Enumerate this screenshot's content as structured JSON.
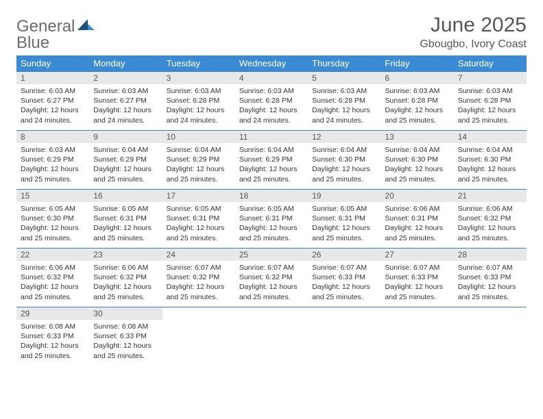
{
  "logo": {
    "textGray": "General",
    "textBlue": "Blue"
  },
  "header": {
    "title": "June 2025",
    "location": "Gbougbo, Ivory Coast"
  },
  "colors": {
    "headerBar": "#3b8bd4",
    "rowBorder": "#3b7fc4",
    "dayNumBg": "#e8e8e8",
    "logoBlue": "#3b7fc4",
    "logoNavy": "#1f4e79"
  },
  "weekdays": [
    "Sunday",
    "Monday",
    "Tuesday",
    "Wednesday",
    "Thursday",
    "Friday",
    "Saturday"
  ],
  "startOffset": 0,
  "days": [
    {
      "n": 1,
      "sr": "6:03 AM",
      "ss": "6:27 PM",
      "dl": "12 hours and 24 minutes."
    },
    {
      "n": 2,
      "sr": "6:03 AM",
      "ss": "6:27 PM",
      "dl": "12 hours and 24 minutes."
    },
    {
      "n": 3,
      "sr": "6:03 AM",
      "ss": "6:28 PM",
      "dl": "12 hours and 24 minutes."
    },
    {
      "n": 4,
      "sr": "6:03 AM",
      "ss": "6:28 PM",
      "dl": "12 hours and 24 minutes."
    },
    {
      "n": 5,
      "sr": "6:03 AM",
      "ss": "6:28 PM",
      "dl": "12 hours and 24 minutes."
    },
    {
      "n": 6,
      "sr": "6:03 AM",
      "ss": "6:28 PM",
      "dl": "12 hours and 25 minutes."
    },
    {
      "n": 7,
      "sr": "6:03 AM",
      "ss": "6:28 PM",
      "dl": "12 hours and 25 minutes."
    },
    {
      "n": 8,
      "sr": "6:03 AM",
      "ss": "6:29 PM",
      "dl": "12 hours and 25 minutes."
    },
    {
      "n": 9,
      "sr": "6:04 AM",
      "ss": "6:29 PM",
      "dl": "12 hours and 25 minutes."
    },
    {
      "n": 10,
      "sr": "6:04 AM",
      "ss": "6:29 PM",
      "dl": "12 hours and 25 minutes."
    },
    {
      "n": 11,
      "sr": "6:04 AM",
      "ss": "6:29 PM",
      "dl": "12 hours and 25 minutes."
    },
    {
      "n": 12,
      "sr": "6:04 AM",
      "ss": "6:30 PM",
      "dl": "12 hours and 25 minutes."
    },
    {
      "n": 13,
      "sr": "6:04 AM",
      "ss": "6:30 PM",
      "dl": "12 hours and 25 minutes."
    },
    {
      "n": 14,
      "sr": "6:04 AM",
      "ss": "6:30 PM",
      "dl": "12 hours and 25 minutes."
    },
    {
      "n": 15,
      "sr": "6:05 AM",
      "ss": "6:30 PM",
      "dl": "12 hours and 25 minutes."
    },
    {
      "n": 16,
      "sr": "6:05 AM",
      "ss": "6:31 PM",
      "dl": "12 hours and 25 minutes."
    },
    {
      "n": 17,
      "sr": "6:05 AM",
      "ss": "6:31 PM",
      "dl": "12 hours and 25 minutes."
    },
    {
      "n": 18,
      "sr": "6:05 AM",
      "ss": "6:31 PM",
      "dl": "12 hours and 25 minutes."
    },
    {
      "n": 19,
      "sr": "6:05 AM",
      "ss": "6:31 PM",
      "dl": "12 hours and 25 minutes."
    },
    {
      "n": 20,
      "sr": "6:06 AM",
      "ss": "6:31 PM",
      "dl": "12 hours and 25 minutes."
    },
    {
      "n": 21,
      "sr": "6:06 AM",
      "ss": "6:32 PM",
      "dl": "12 hours and 25 minutes."
    },
    {
      "n": 22,
      "sr": "6:06 AM",
      "ss": "6:32 PM",
      "dl": "12 hours and 25 minutes."
    },
    {
      "n": 23,
      "sr": "6:06 AM",
      "ss": "6:32 PM",
      "dl": "12 hours and 25 minutes."
    },
    {
      "n": 24,
      "sr": "6:07 AM",
      "ss": "6:32 PM",
      "dl": "12 hours and 25 minutes."
    },
    {
      "n": 25,
      "sr": "6:07 AM",
      "ss": "6:32 PM",
      "dl": "12 hours and 25 minutes."
    },
    {
      "n": 26,
      "sr": "6:07 AM",
      "ss": "6:33 PM",
      "dl": "12 hours and 25 minutes."
    },
    {
      "n": 27,
      "sr": "6:07 AM",
      "ss": "6:33 PM",
      "dl": "12 hours and 25 minutes."
    },
    {
      "n": 28,
      "sr": "6:07 AM",
      "ss": "6:33 PM",
      "dl": "12 hours and 25 minutes."
    },
    {
      "n": 29,
      "sr": "6:08 AM",
      "ss": "6:33 PM",
      "dl": "12 hours and 25 minutes."
    },
    {
      "n": 30,
      "sr": "6:08 AM",
      "ss": "6:33 PM",
      "dl": "12 hours and 25 minutes."
    }
  ],
  "labels": {
    "sunrise": "Sunrise:",
    "sunset": "Sunset:",
    "daylight": "Daylight:"
  }
}
